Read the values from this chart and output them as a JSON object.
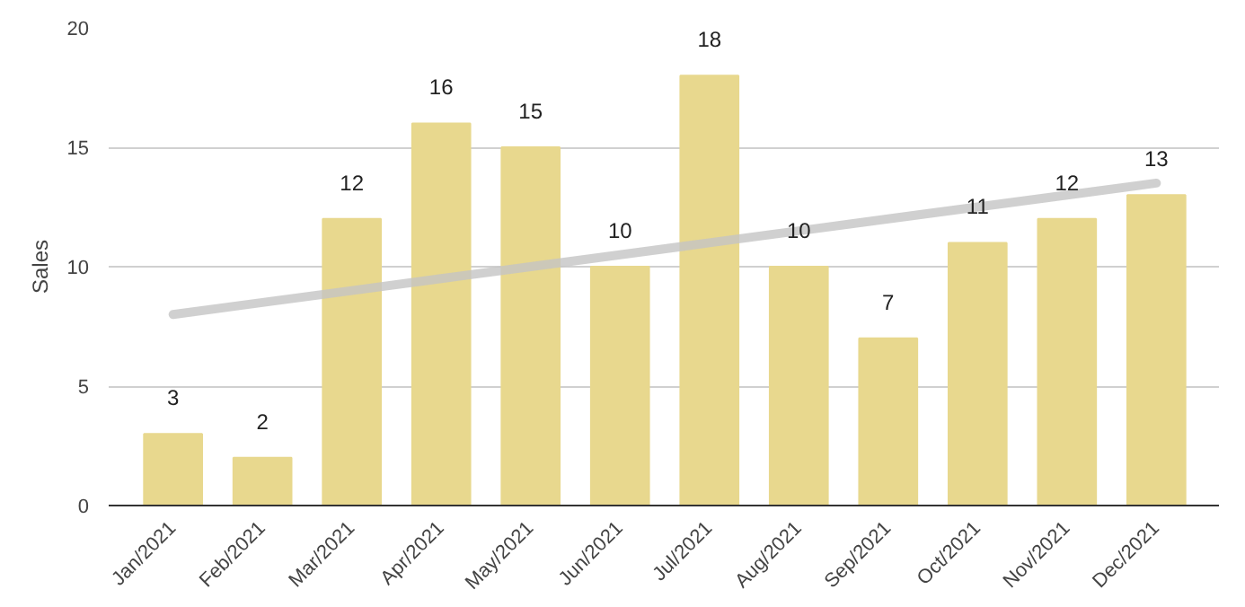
{
  "chart_data": {
    "type": "bar",
    "ylabel": "Sales",
    "categories": [
      "Jan/2021",
      "Feb/2021",
      "Mar/2021",
      "Apr/2021",
      "May/2021",
      "Jun/2021",
      "Jul/2021",
      "Aug/2021",
      "Sep/2021",
      "Oct/2021",
      "Nov/2021",
      "Dec/2021"
    ],
    "series": [
      {
        "color": "#e8d88e",
        "values": [
          3,
          2,
          12,
          16,
          15,
          10,
          18,
          10,
          7,
          11,
          12,
          13
        ],
        "value_labels": [
          "3",
          "2",
          "12",
          "16",
          "15",
          "10",
          "18",
          "10",
          "7",
          "11",
          "12",
          "13"
        ]
      },
      {
        "type": "line",
        "color": "#c4c4c4",
        "values": [
          8.0,
          8.5,
          9.0,
          9.5,
          10.0,
          10.5,
          11.0,
          11.5,
          12.0,
          12.5,
          13.0,
          13.5
        ]
      }
    ],
    "ylim": [
      0,
      20
    ],
    "yticks": [
      0,
      5,
      10,
      15,
      20
    ],
    "grid": "y"
  }
}
